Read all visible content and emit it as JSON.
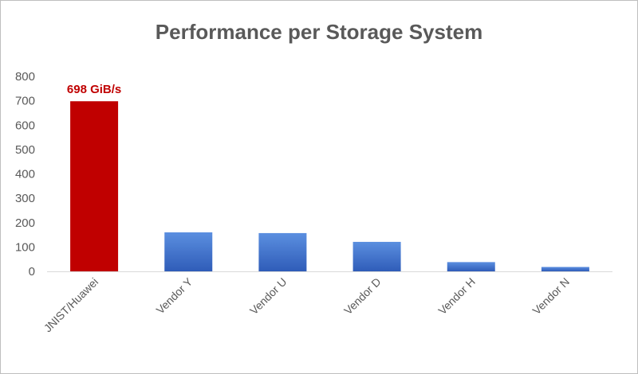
{
  "chart_data": {
    "type": "bar",
    "title": "Performance per Storage System",
    "xlabel": "",
    "ylabel": "",
    "categories": [
      "JNIST/Huawei",
      "Vendor Y",
      "Vendor U",
      "Vendor D",
      "Vendor H",
      "Vendor N"
    ],
    "values": [
      698,
      160,
      157,
      121,
      38,
      18
    ],
    "ylim": [
      0,
      800
    ],
    "yticks": [
      0,
      100,
      200,
      300,
      400,
      500,
      600,
      700,
      800
    ],
    "data_labels": [
      {
        "index": 0,
        "text": "698 GiB/s"
      }
    ],
    "colors": {
      "highlight": "#c00000",
      "bar_top": "#5b8fe0",
      "bar_bottom": "#2f5cb8",
      "data_label": "#c00000",
      "axis": "#d9d9d9",
      "text": "#595959"
    },
    "highlight_index": 0,
    "grid": false,
    "legend": "none"
  }
}
